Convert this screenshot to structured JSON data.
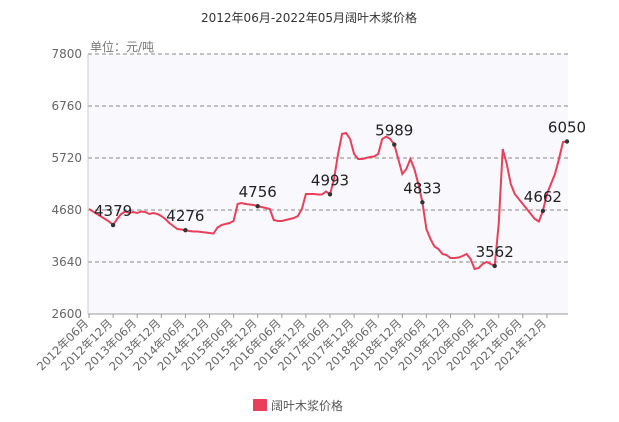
{
  "chart_data": {
    "type": "line",
    "title": "2012年06月-2022年05月阔叶木浆价格",
    "unit_label": "单位：元/吨",
    "categories": [
      "2012年06月",
      null,
      null,
      null,
      null,
      null,
      "2012年12月",
      null,
      null,
      null,
      null,
      null,
      "2013年06月",
      null,
      null,
      null,
      null,
      null,
      "2013年12月",
      null,
      null,
      null,
      null,
      null,
      "2014年06月",
      null,
      null,
      null,
      null,
      null,
      "2014年12月",
      null,
      null,
      null,
      null,
      null,
      "2015年06月",
      null,
      null,
      null,
      null,
      null,
      "2015年12月",
      null,
      null,
      null,
      null,
      null,
      "2016年06月",
      null,
      null,
      null,
      null,
      null,
      "2016年12月",
      null,
      null,
      null,
      null,
      null,
      "2017年06月",
      null,
      null,
      null,
      null,
      null,
      "2017年12月",
      null,
      null,
      null,
      null,
      null,
      "2018年06月",
      null,
      null,
      null,
      null,
      null,
      "2018年12月",
      null,
      null,
      null,
      null,
      null,
      "2019年06月",
      null,
      null,
      null,
      null,
      null,
      "2019年12月",
      null,
      null,
      null,
      null,
      null,
      "2020年06月",
      null,
      null,
      null,
      null,
      null,
      "2020年12月",
      null,
      null,
      null,
      null,
      null,
      "2021年06月",
      null,
      null,
      null,
      null,
      null,
      "2021年12月",
      null,
      null,
      null,
      null,
      null
    ],
    "series": [
      {
        "name": "阔叶木浆价格",
        "color": "#e8405a",
        "values": [
          4700,
          4650,
          4600,
          4550,
          4500,
          4450,
          4379,
          4500,
          4600,
          4650,
          4620,
          4640,
          4620,
          4650,
          4640,
          4600,
          4620,
          4600,
          4560,
          4500,
          4420,
          4360,
          4300,
          4290,
          4276,
          4260,
          4250,
          4250,
          4240,
          4230,
          4220,
          4210,
          4330,
          4380,
          4400,
          4420,
          4460,
          4800,
          4820,
          4800,
          4790,
          4780,
          4756,
          4740,
          4720,
          4700,
          4480,
          4460,
          4460,
          4480,
          4500,
          4520,
          4560,
          4700,
          5000,
          5000,
          5000,
          4990,
          4990,
          5050,
          4993,
          5300,
          5800,
          6200,
          6220,
          6100,
          5800,
          5700,
          5700,
          5720,
          5740,
          5750,
          5800,
          6100,
          6150,
          6100,
          5989,
          5700,
          5400,
          5500,
          5700,
          5500,
          5200,
          4833,
          4300,
          4100,
          3950,
          3900,
          3800,
          3780,
          3720,
          3720,
          3730,
          3760,
          3800,
          3700,
          3500,
          3520,
          3600,
          3640,
          3600,
          3562,
          4400,
          5900,
          5600,
          5200,
          5000,
          4900,
          4800,
          4700,
          4600,
          4500,
          4450,
          4662,
          5000,
          5200,
          5400,
          5700,
          6040,
          6050
        ],
        "annotated_indices": [
          6,
          24,
          42,
          60,
          76,
          83,
          101,
          113,
          119
        ]
      }
    ],
    "ylim": [
      2600,
      7800
    ],
    "yticks": [
      2600,
      3640,
      4680,
      5720,
      6760,
      7800
    ],
    "grid": true,
    "legend": "bottom"
  }
}
